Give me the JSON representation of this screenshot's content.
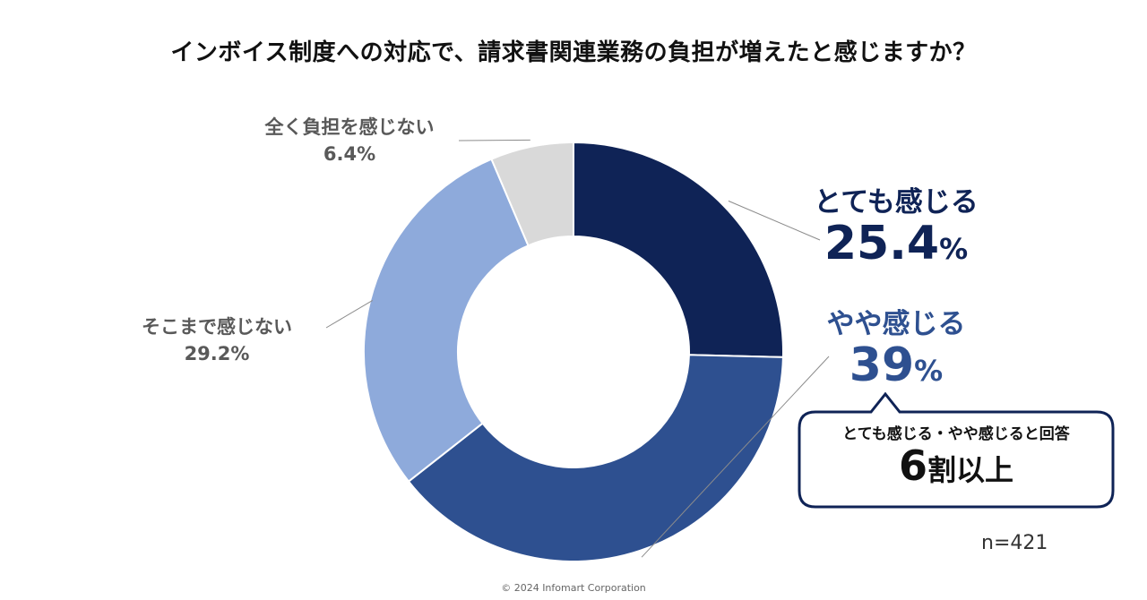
{
  "title": "インボイス制度への対応で、請求書関連業務の負担が増えたと感じますか？",
  "chart_data": {
    "type": "pie",
    "donut": true,
    "slices": [
      {
        "label": "とても感じる",
        "value": 25.4,
        "display": "25.4",
        "unit": "%",
        "color": "#0f2356"
      },
      {
        "label": "やや感じる",
        "value": 39,
        "display": "39",
        "unit": "%",
        "color": "#2e5090"
      },
      {
        "label": "そこまで感じない",
        "value": 29.2,
        "display": "29.2%",
        "color": "#8eaadb"
      },
      {
        "label": "全く負担を感じない",
        "value": 6.4,
        "display": "6.4%",
        "color": "#d9d9d9"
      }
    ],
    "callout": {
      "line1": "とても感じる・やや感じると回答",
      "main": "6",
      "suffix": "割以上"
    }
  },
  "n_label": "n=421",
  "copyright": "© 2024  Infomart Corporation"
}
